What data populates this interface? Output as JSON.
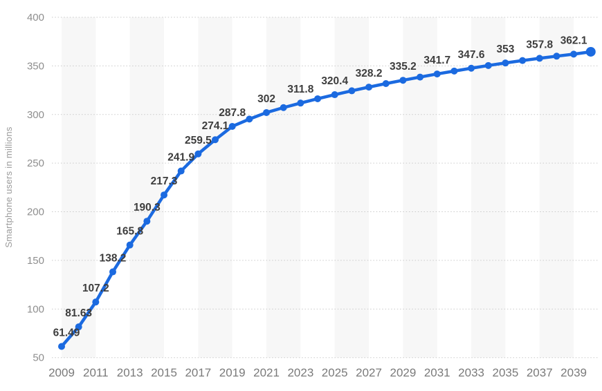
{
  "chart": {
    "background_color": "#ffffff",
    "stripe_color": "#f7f7f7",
    "grid_color": "#c9c9c9",
    "line_color": "#1b6ae0",
    "point_color": "#1b6ae0",
    "value_label_color": "#3d3d3d",
    "x_tick_color": "#7a7a7a",
    "y_tick_color": "#8e8e8e",
    "y_title_color": "#9b9b9b"
  },
  "chart_data": {
    "type": "line",
    "title": "",
    "xlabel": "",
    "ylabel": "Smartphone users in millions",
    "x": [
      2009,
      2010,
      2011,
      2012,
      2013,
      2014,
      2015,
      2016,
      2017,
      2018,
      2019,
      2020,
      2021,
      2022,
      2023,
      2024,
      2025,
      2026,
      2027,
      2028,
      2029,
      2030,
      2031,
      2032,
      2033,
      2034,
      2035,
      2036,
      2037,
      2038,
      2039,
      2040
    ],
    "values": [
      61.49,
      81.63,
      107.2,
      138.2,
      165.8,
      190.3,
      217.3,
      241.9,
      259.5,
      274.1,
      287.8,
      295.3,
      302,
      307.1,
      311.8,
      316.2,
      320.4,
      324.4,
      328.2,
      331.8,
      335.2,
      338.5,
      341.7,
      344.7,
      347.6,
      350.4,
      353,
      355.5,
      357.8,
      360,
      362.1,
      364.5
    ],
    "data_labels": {
      "2009": "61.49",
      "2010": "81.63",
      "2011": "107.2",
      "2012": "138.2",
      "2013": "165.8",
      "2014": "190.3",
      "2015": "217.3",
      "2016": "241.9",
      "2017": "259.5",
      "2018": "274.1",
      "2019": "287.8",
      "2021": "302",
      "2023": "311.8",
      "2025": "320.4",
      "2027": "328.2",
      "2029": "335.2",
      "2031": "341.7",
      "2033": "347.6",
      "2035": "353",
      "2037": "357.8",
      "2039": "362.1"
    },
    "unlabeled_years_estimated": [
      2020,
      2022,
      2024,
      2026,
      2028,
      2030,
      2032,
      2034,
      2036,
      2038,
      2040
    ],
    "xticks": [
      2009,
      2011,
      2013,
      2015,
      2017,
      2019,
      2021,
      2023,
      2025,
      2027,
      2029,
      2031,
      2033,
      2035,
      2037,
      2039
    ],
    "yticks": [
      50,
      100,
      150,
      200,
      250,
      300,
      350,
      400
    ],
    "ylim": [
      50,
      400
    ],
    "xlim": [
      2009,
      2040
    ],
    "grid": "horizontal-dotted",
    "legend": "none",
    "background_stripes": "alternating 2-year vertical bands, shaded starting at 2009",
    "marker": "circle",
    "last_point_emphasized": true
  }
}
